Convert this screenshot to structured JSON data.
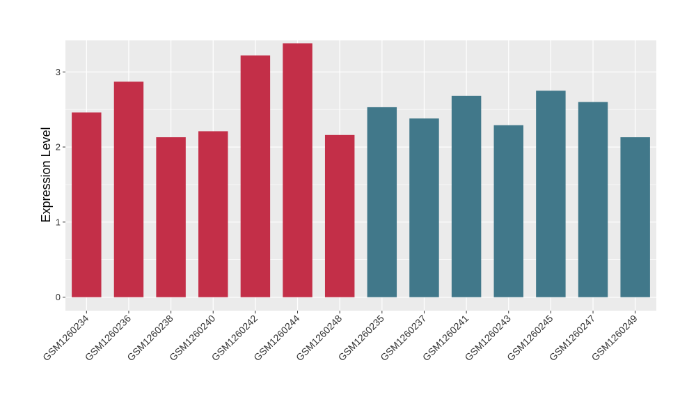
{
  "chart_data": {
    "type": "bar",
    "ylabel": "Expression Level",
    "xlabel": "",
    "ylim": [
      -0.18,
      3.42
    ],
    "yticks": [
      0,
      1,
      2,
      3
    ],
    "grid": true,
    "categories": [
      "GSM1260234",
      "GSM1260236",
      "GSM1260238",
      "GSM1260240",
      "GSM1260242",
      "GSM1260244",
      "GSM1260248",
      "GSM1260235",
      "GSM1260237",
      "GSM1260241",
      "GSM1260243",
      "GSM1260245",
      "GSM1260247",
      "GSM1260249"
    ],
    "values": [
      2.46,
      2.87,
      2.13,
      2.21,
      3.22,
      3.38,
      2.16,
      2.53,
      2.38,
      2.68,
      2.29,
      2.75,
      2.6,
      2.13
    ],
    "groups": [
      "a",
      "a",
      "a",
      "a",
      "a",
      "a",
      "a",
      "b",
      "b",
      "b",
      "b",
      "b",
      "b",
      "b"
    ],
    "group_colors": {
      "a": "#C32F48",
      "b": "#41788A"
    },
    "panel_background": "#EBEBEB",
    "grid_color": "#FFFFFF"
  }
}
